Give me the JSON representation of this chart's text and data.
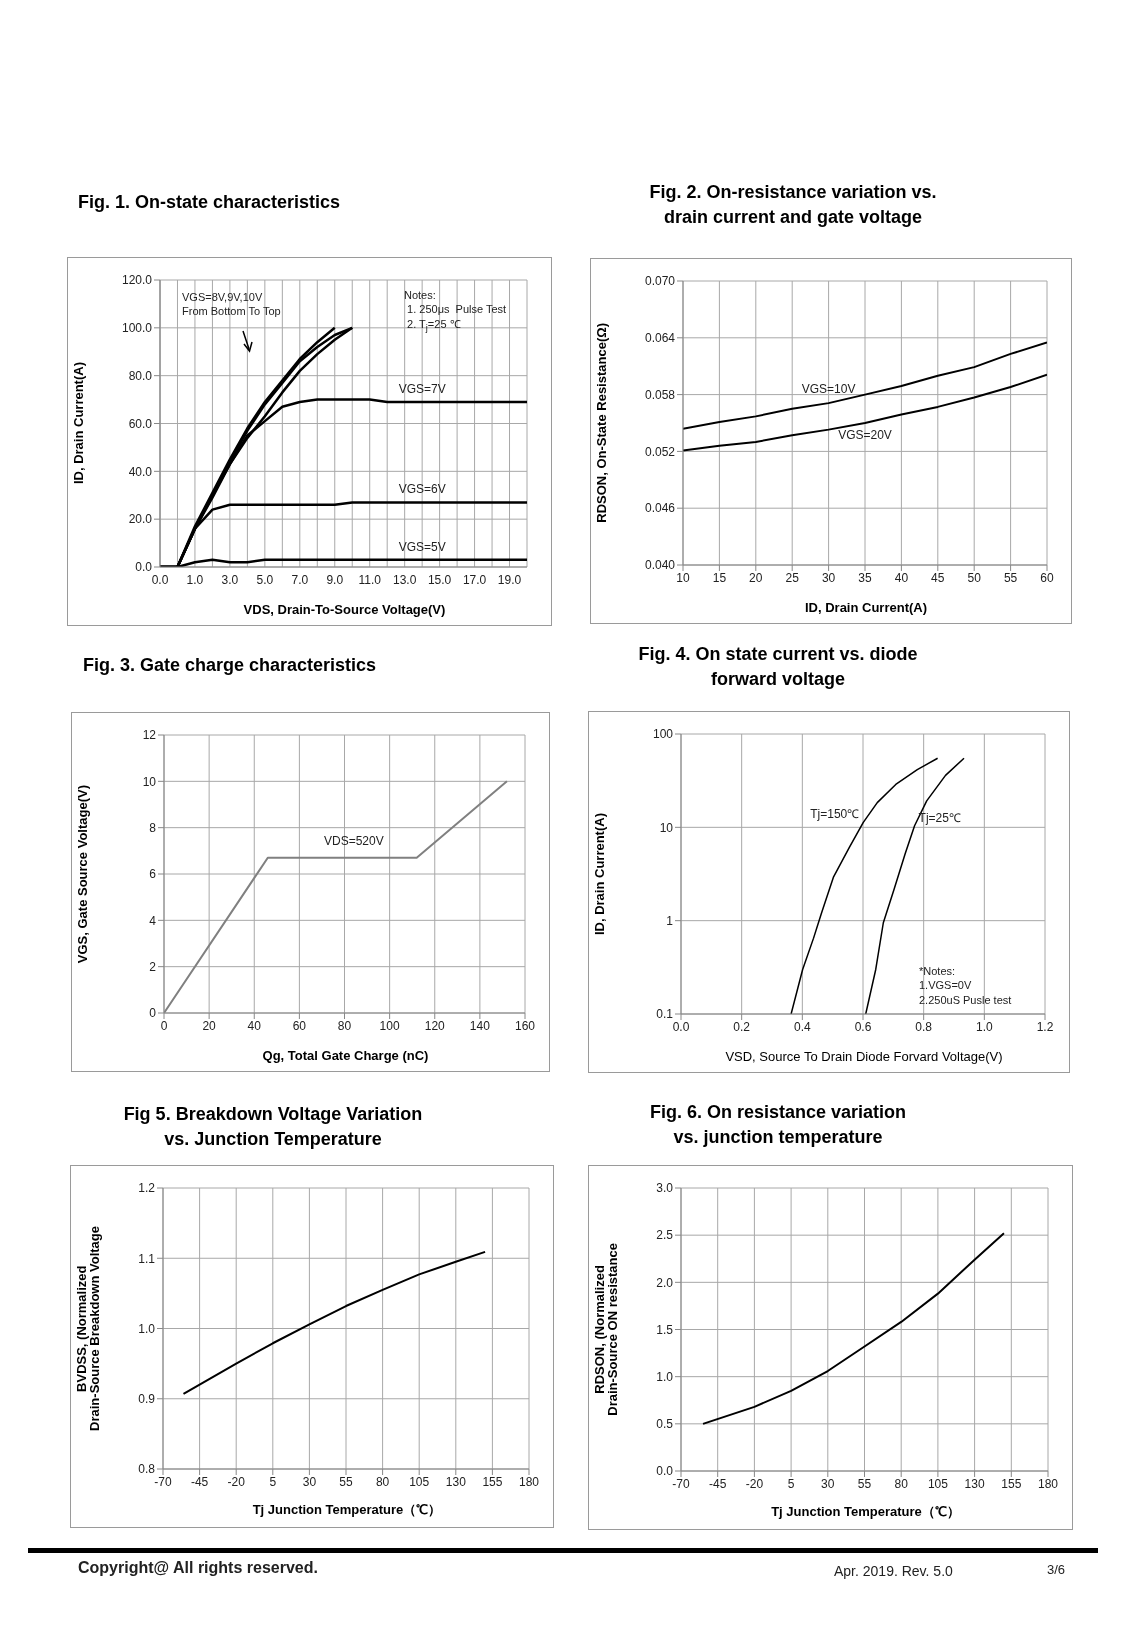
{
  "chart_data": [
    {
      "type": "line",
      "title": "Fig. 1. On-state characteristics",
      "xlabel": "VDS,  Drain-To-Source Voltage(V)",
      "ylabel": "ID,  Drain Current(A)",
      "categories": [
        "0.0",
        null,
        "1.0",
        null,
        "3.0",
        null,
        "5.0",
        null,
        "7.0",
        null,
        "9.0",
        null,
        "11.0",
        null,
        "13.0",
        null,
        "15.0",
        null,
        "17.0",
        null,
        "19.0",
        null
      ],
      "ylim": [
        0,
        120
      ],
      "yticks": [
        {
          "value": 0,
          "label": "0.0"
        },
        {
          "value": 20,
          "label": "20.0"
        },
        {
          "value": 40,
          "label": "40.0"
        },
        {
          "value": 60,
          "label": "60.0"
        },
        {
          "value": 80,
          "label": "80.0"
        },
        {
          "value": 100,
          "label": "100.0"
        },
        {
          "value": 120,
          "label": "120.0"
        }
      ],
      "grid": true,
      "marker": "none",
      "series": [
        {
          "color": "#000000",
          "values": [
            0,
            0,
            16,
            29,
            43,
            54,
            63,
            73,
            82,
            89,
            95,
            100,
            null,
            null,
            null,
            null,
            null,
            null,
            null,
            null,
            null,
            null
          ]
        },
        {
          "color": "#000000",
          "values": [
            0,
            0,
            16,
            30,
            44,
            57,
            68,
            77,
            86,
            92,
            97,
            100,
            null,
            null,
            null,
            null,
            null,
            null,
            null,
            null,
            null,
            null
          ]
        },
        {
          "color": "#000000",
          "values": [
            0,
            0,
            17,
            31,
            45,
            58,
            69,
            78,
            87,
            94,
            100,
            null,
            null,
            null,
            null,
            null,
            null,
            null,
            null,
            null,
            null,
            null
          ]
        },
        {
          "name": "VGS=7V",
          "color": "#000000",
          "values": [
            0,
            0,
            16,
            30,
            43,
            55,
            61,
            67,
            69,
            70,
            70,
            70,
            70,
            69,
            69,
            69,
            69,
            69,
            69,
            69,
            69,
            69
          ]
        },
        {
          "name": "VGS=6V",
          "color": "#000000",
          "values": [
            0,
            0,
            16,
            24,
            26,
            26,
            26,
            26,
            26,
            26,
            26,
            27,
            27,
            27,
            27,
            27,
            27,
            27,
            27,
            27,
            27,
            27
          ]
        },
        {
          "name": "VGS=5V",
          "color": "#000000",
          "values": [
            0,
            0,
            2,
            3,
            2,
            2,
            3,
            3,
            3,
            3,
            3,
            3,
            3,
            3,
            3,
            3,
            3,
            3,
            3,
            3,
            3,
            3
          ]
        }
      ],
      "annotations": [
        "VGS=8V,9V,10V\nFrom Bottom To Top",
        "Notes:\n 1. 250μs  Pulse Test\n 2. T$_{j}$=25 ℃"
      ]
    },
    {
      "type": "line",
      "title": "Fig. 2. On-resistance variation vs.\ndrain current and gate voltage",
      "xlabel": "ID, Drain Current(A)",
      "ylabel": "RDSON, On-State Resistance(Ω)",
      "x": [
        10,
        15,
        20,
        25,
        30,
        35,
        40,
        45,
        50,
        55,
        60
      ],
      "xlim": [
        10,
        60
      ],
      "xticks": [
        10,
        15,
        20,
        25,
        30,
        35,
        40,
        45,
        50,
        55,
        60
      ],
      "ylim": [
        0.04,
        0.07
      ],
      "yticks": [
        {
          "value": 0.04,
          "label": "0.040"
        },
        {
          "value": 0.046,
          "label": "0.046"
        },
        {
          "value": 0.052,
          "label": "0.052"
        },
        {
          "value": 0.058,
          "label": "0.058"
        },
        {
          "value": 0.064,
          "label": "0.064"
        },
        {
          "value": 0.07,
          "label": "0.070"
        }
      ],
      "grid": true,
      "marker": "none",
      "series": [
        {
          "name": "VGS=10V",
          "color": "#000000",
          "values": [
            0.0544,
            0.0551,
            0.0557,
            0.0565,
            0.0571,
            0.058,
            0.0589,
            0.06,
            0.0609,
            0.0623,
            0.0635
          ]
        },
        {
          "name": "VGS=20V",
          "color": "#000000",
          "values": [
            0.0521,
            0.0526,
            0.053,
            0.0537,
            0.0543,
            0.055,
            0.0559,
            0.0567,
            0.0577,
            0.0588,
            0.0601
          ]
        }
      ]
    },
    {
      "type": "line",
      "title": "Fig. 3. Gate charge characteristics",
      "xlabel": "Qg, Total Gate Charge (nC)",
      "ylabel": "VGS,  Gate Source Voltage(V)",
      "x": [
        0,
        46,
        112,
        152
      ],
      "xlim": [
        0,
        160
      ],
      "xticks": [
        0,
        20,
        40,
        60,
        80,
        100,
        120,
        140,
        160
      ],
      "ylim": [
        0,
        12
      ],
      "yticks": [
        0,
        2,
        4,
        6,
        8,
        10,
        12
      ],
      "grid": true,
      "marker": "none",
      "series": [
        {
          "color": "#808080",
          "values": [
            0,
            6.7,
            6.7,
            10
          ]
        }
      ],
      "annotations": [
        "VDS=520V"
      ]
    },
    {
      "type": "line",
      "title": "Fig. 4. On state current vs. diode\nforward voltage",
      "xlabel": "VSD, Source To Drain Diode Forvard Voltage(V)",
      "ylabel": "ID,  Drain Current(A)",
      "xlim": [
        0,
        1.2
      ],
      "xticks": [
        {
          "value": 0,
          "label": "0.0"
        },
        {
          "value": 0.2,
          "label": "0.2"
        },
        {
          "value": 0.4,
          "label": "0.4"
        },
        {
          "value": 0.6,
          "label": "0.6"
        },
        {
          "value": 0.8,
          "label": "0.8"
        },
        {
          "value": 1,
          "label": "1.0"
        },
        {
          "value": 1.2,
          "label": "1.2"
        }
      ],
      "ylim": [
        0.1,
        100
      ],
      "yticks": [
        0.1,
        1,
        10,
        100
      ],
      "log": "y",
      "grid": true,
      "marker": "none",
      "series": [
        {
          "name": "Tj=150℃",
          "color": "#000000",
          "x": [
            0.363,
            0.401,
            0.437,
            0.463,
            0.503,
            0.555,
            0.601,
            0.647,
            0.708,
            0.779,
            0.846
          ],
          "values": [
            0.1,
            0.3,
            0.65,
            1.2,
            2.95,
            6.1,
            11.3,
            18.4,
            28.8,
            41.5,
            55
          ]
        },
        {
          "name": "Tj=25℃",
          "color": "#000000",
          "x": [
            0.609,
            0.642,
            0.667,
            0.703,
            0.739,
            0.77,
            0.81,
            0.872,
            0.933
          ],
          "values": [
            0.1,
            0.3,
            0.95,
            2.2,
            5.2,
            10.4,
            19.2,
            36,
            55
          ]
        }
      ],
      "annotations": [
        "*Notes:\n1.VGS=0V\n2.250uS Pusle test"
      ]
    },
    {
      "type": "line",
      "title": "Fig 5. Breakdown Voltage Variation\nvs. Junction Temperature",
      "xlabel": "Tj  Junction Temperature（℃）",
      "ylabel": "BVDSS, (Normalized\nDrain-Source Breakdown Voltage",
      "x": [
        -56,
        -20,
        5,
        30,
        55,
        80,
        105,
        130,
        150
      ],
      "xlim": [
        -70,
        180
      ],
      "xticks": [
        -70,
        -45,
        -20,
        5,
        30,
        55,
        80,
        105,
        130,
        155,
        180
      ],
      "ylim": [
        0.8,
        1.2
      ],
      "yticks": [
        0.8,
        0.9,
        {
          "value": 1,
          "label": "1.0"
        },
        1.1,
        1.2
      ],
      "grid": true,
      "marker": "none",
      "series": [
        {
          "color": "#000000",
          "values": [
            0.907,
            0.95,
            0.979,
            1.006,
            1.032,
            1.055,
            1.077,
            1.095,
            1.109
          ]
        }
      ]
    },
    {
      "type": "line",
      "title": "Fig. 6. On resistance variation\nvs. junction temperature",
      "xlabel": "Tj  Junction Temperature（℃）",
      "ylabel": "RDSON, (Normalized\nDrain-Source ON resistance",
      "x": [
        -55,
        -20,
        5,
        30,
        55,
        80,
        105,
        130,
        150
      ],
      "xlim": [
        -70,
        180
      ],
      "xticks": [
        -70,
        -45,
        -20,
        5,
        30,
        55,
        80,
        105,
        130,
        155,
        180
      ],
      "ylim": [
        0,
        3
      ],
      "yticks": [
        {
          "value": 0,
          "label": "0.0"
        },
        0.5,
        {
          "value": 1,
          "label": "1.0"
        },
        1.5,
        {
          "value": 2,
          "label": "2.0"
        },
        2.5,
        {
          "value": 3,
          "label": "3.0"
        }
      ],
      "grid": true,
      "marker": "none",
      "series": [
        {
          "color": "#000000",
          "values": [
            0.5,
            0.68,
            0.85,
            1.06,
            1.32,
            1.58,
            1.88,
            2.24,
            2.52
          ]
        }
      ],
      "annotations": [
        "Copyright@ All rights reserved.",
        "Apr. 2019. Rev. 5.0",
        "3/6"
      ]
    }
  ]
}
